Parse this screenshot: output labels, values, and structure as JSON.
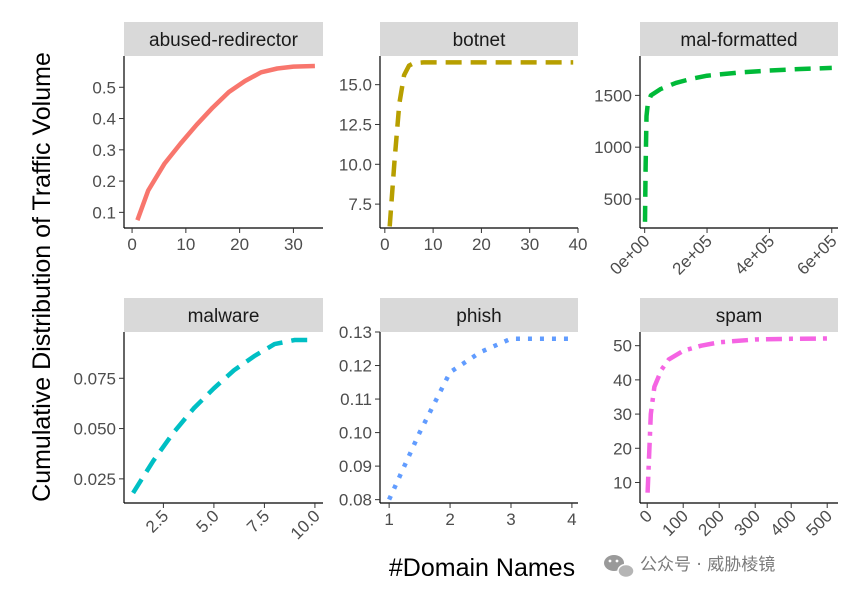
{
  "figure": {
    "xlabel": "#Domain Names",
    "ylabel": "Cumulative Distribution of Traffic Volume"
  },
  "watermark": {
    "text": "公众号 · 威胁棱镜"
  },
  "chart_data": [
    {
      "type": "line",
      "title": "abused-redirector",
      "color": "#F8766D",
      "line_style": "solid",
      "xlim": [
        -1.5,
        35.5
      ],
      "ylim": [
        0.05,
        0.6
      ],
      "x_ticks": [
        0,
        10,
        20,
        30
      ],
      "x_tick_labels": [
        "0",
        "10",
        "20",
        "30"
      ],
      "y_ticks": [
        0.1,
        0.2,
        0.3,
        0.4,
        0.5
      ],
      "y_tick_labels": [
        "0.1",
        "0.2",
        "0.3",
        "0.4",
        "0.5"
      ],
      "x": [
        1,
        3,
        6,
        9,
        12,
        15,
        18,
        21,
        24,
        27,
        30,
        34
      ],
      "y": [
        0.075,
        0.17,
        0.255,
        0.32,
        0.38,
        0.435,
        0.485,
        0.52,
        0.548,
        0.56,
        0.566,
        0.568
      ]
    },
    {
      "type": "line",
      "title": "botnet",
      "color": "#B79F00",
      "line_style": "dashed",
      "xlim": [
        -1,
        40
      ],
      "ylim": [
        6.0,
        16.8
      ],
      "x_ticks": [
        0,
        10,
        20,
        30,
        40
      ],
      "x_tick_labels": [
        "0",
        "10",
        "20",
        "30",
        "40"
      ],
      "y_ticks": [
        7.5,
        10.0,
        12.5,
        15.0
      ],
      "y_tick_labels": [
        "7.5",
        "10.0",
        "12.5",
        "15.0"
      ],
      "x": [
        1,
        2,
        3,
        4,
        5,
        6,
        8,
        10,
        15,
        20,
        25,
        30,
        35,
        39
      ],
      "y": [
        6.1,
        10.2,
        13.8,
        15.6,
        16.2,
        16.35,
        16.4,
        16.4,
        16.4,
        16.4,
        16.4,
        16.4,
        16.4,
        16.4
      ]
    },
    {
      "type": "line",
      "title": "mal-formatted",
      "color": "#00BA38",
      "line_style": "dashed",
      "xlim": [
        -15000,
        620000
      ],
      "ylim": [
        220,
        1880
      ],
      "x_ticks": [
        0,
        200000,
        400000,
        600000
      ],
      "x_tick_labels": [
        "0e+00",
        "2e+05",
        "4e+05",
        "6e+05"
      ],
      "y_ticks": [
        500,
        1000,
        1500
      ],
      "y_tick_labels": [
        "500",
        "1000",
        "1500"
      ],
      "x": [
        1000,
        3000,
        6000,
        10000,
        20000,
        50000,
        100000,
        150000,
        200000,
        300000,
        400000,
        500000,
        600000
      ],
      "y": [
        280,
        800,
        1300,
        1420,
        1500,
        1560,
        1620,
        1660,
        1690,
        1720,
        1740,
        1755,
        1765
      ]
    },
    {
      "type": "line",
      "title": "malware",
      "color": "#00BFC4",
      "line_style": "dashed",
      "xlim": [
        0.55,
        10.4
      ],
      "ylim": [
        0.013,
        0.098
      ],
      "x_ticks": [
        2.5,
        5.0,
        7.5,
        10.0
      ],
      "x_tick_labels": [
        "2.5",
        "5.0",
        "7.5",
        "10.0"
      ],
      "y_ticks": [
        0.025,
        0.05,
        0.075
      ],
      "y_tick_labels": [
        "0.025",
        "0.050",
        "0.075"
      ],
      "x": [
        1,
        2,
        3,
        4,
        5,
        6,
        7,
        8,
        9,
        10
      ],
      "y": [
        0.018,
        0.034,
        0.048,
        0.06,
        0.07,
        0.079,
        0.086,
        0.092,
        0.094,
        0.094
      ]
    },
    {
      "type": "line",
      "title": "phish",
      "color": "#619CFF",
      "line_style": "dotted",
      "xlim": [
        0.85,
        4.1
      ],
      "ylim": [
        0.079,
        0.13
      ],
      "x_ticks": [
        1,
        2,
        3,
        4
      ],
      "x_tick_labels": [
        "1",
        "2",
        "3",
        "4"
      ],
      "y_ticks": [
        0.08,
        0.09,
        0.1,
        0.11,
        0.12,
        0.13
      ],
      "y_tick_labels": [
        "0.08",
        "0.09",
        "0.10",
        "0.11",
        "0.12",
        "0.13"
      ],
      "x": [
        1,
        1.5,
        2,
        2.5,
        3,
        3.5,
        4
      ],
      "y": [
        0.08,
        0.1,
        0.118,
        0.124,
        0.128,
        0.128,
        0.128
      ]
    },
    {
      "type": "line",
      "title": "spam",
      "color": "#F564E3",
      "line_style": "dashdot",
      "xlim": [
        -20,
        530
      ],
      "ylim": [
        4,
        54
      ],
      "x_ticks": [
        0,
        100,
        200,
        300,
        400,
        500
      ],
      "x_tick_labels": [
        "0",
        "100",
        "200",
        "300",
        "400",
        "500"
      ],
      "y_ticks": [
        10,
        20,
        30,
        40,
        50
      ],
      "y_tick_labels": [
        "10",
        "20",
        "30",
        "40",
        "50"
      ],
      "x": [
        1,
        10,
        20,
        40,
        60,
        100,
        150,
        200,
        300,
        400,
        500
      ],
      "y": [
        7,
        30,
        38,
        43,
        46,
        48.5,
        50,
        51,
        51.8,
        52,
        52.1
      ]
    }
  ]
}
